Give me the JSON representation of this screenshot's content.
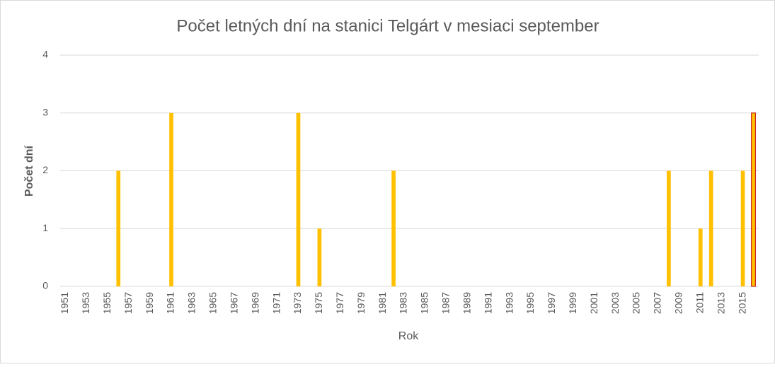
{
  "chart_data": {
    "type": "bar",
    "title": "Počet letných dní na stanici Telgárt v mesiaci september",
    "x_label": "Rok",
    "y_label": "Počet dní",
    "categories": [
      "1951",
      null,
      "1953",
      null,
      "1955",
      null,
      "1957",
      null,
      "1959",
      null,
      "1961",
      null,
      "1963",
      null,
      "1965",
      null,
      "1967",
      null,
      "1969",
      null,
      "1971",
      null,
      "1973",
      null,
      "1975",
      null,
      "1977",
      null,
      "1979",
      null,
      "1981",
      null,
      "1983",
      null,
      "1985",
      null,
      "1987",
      null,
      "1989",
      null,
      "1991",
      null,
      "1993",
      null,
      "1995",
      null,
      "1997",
      null,
      "1999",
      null,
      "2001",
      null,
      "2003",
      null,
      "2005",
      null,
      "2007",
      null,
      "2009",
      null,
      "2011",
      null,
      "2013",
      null,
      "2015",
      null
    ],
    "values": [
      0,
      0,
      0,
      0,
      0,
      2,
      0,
      0,
      0,
      0,
      3,
      0,
      0,
      0,
      0,
      0,
      0,
      0,
      0,
      0,
      0,
      0,
      3,
      0,
      1,
      0,
      0,
      0,
      0,
      0,
      0,
      2,
      0,
      0,
      0,
      0,
      0,
      0,
      0,
      0,
      0,
      0,
      0,
      0,
      0,
      0,
      0,
      0,
      0,
      0,
      0,
      0,
      0,
      0,
      0,
      0,
      0,
      2,
      0,
      0,
      1,
      2,
      0,
      0,
      2,
      3
    ],
    "color": "#ffc000",
    "highlight": {
      "index": 65,
      "stroke": "#c00000"
    },
    "ylim": [
      0,
      4
    ],
    "yticks": [
      0,
      1,
      2,
      3,
      4
    ],
    "grid": true
  }
}
